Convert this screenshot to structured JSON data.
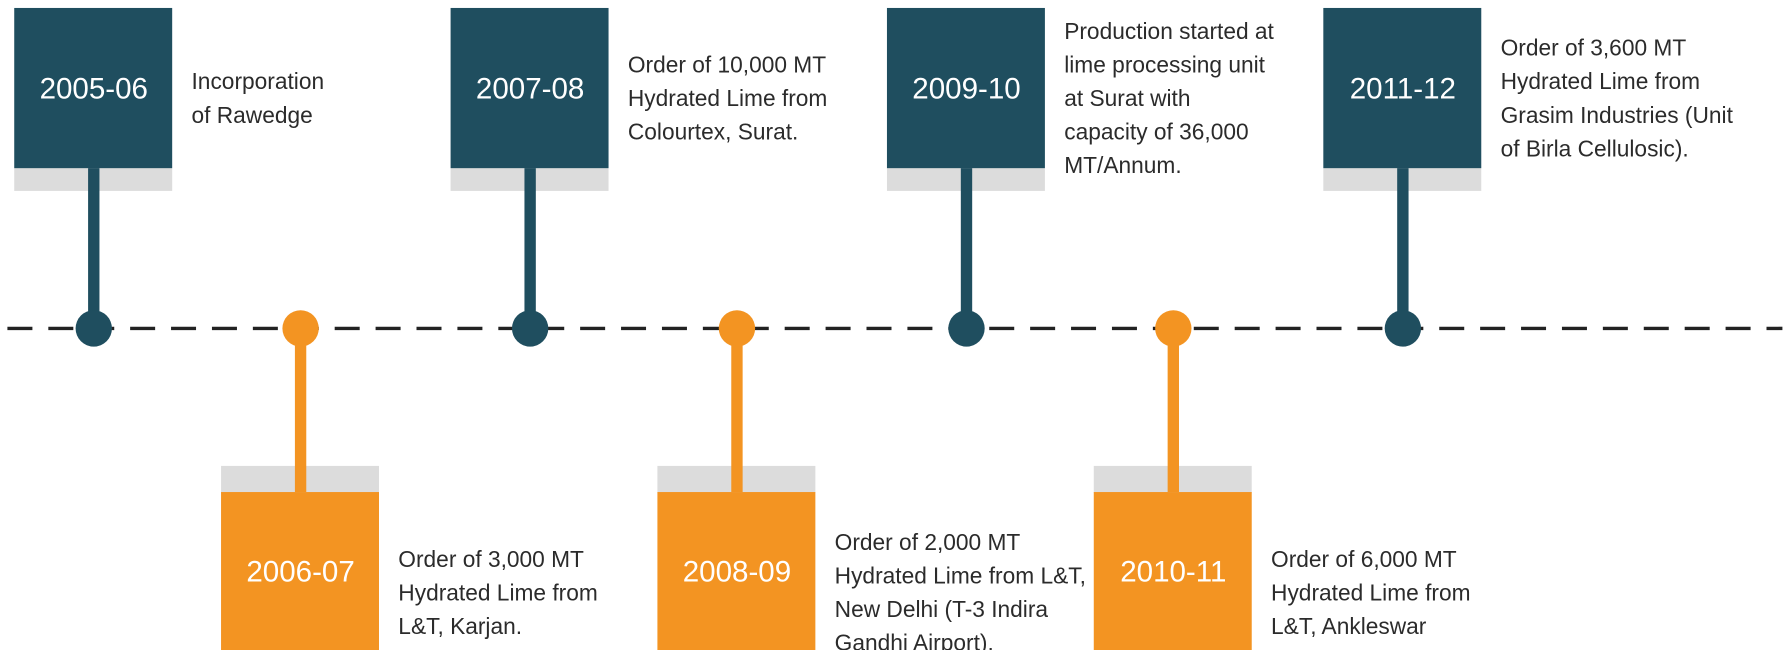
{
  "events": [
    {
      "year": "2005-06",
      "text": [
        "Incorporation",
        "of Rawedge"
      ]
    },
    {
      "year": "2006-07",
      "text": [
        "Order of 3,000 MT",
        "Hydrated Lime from",
        "L&T, Karjan."
      ]
    },
    {
      "year": "2007-08",
      "text": [
        "Order of 10,000 MT",
        "Hydrated Lime from",
        "Colourtex, Surat."
      ]
    },
    {
      "year": "2008-09",
      "text": [
        "Order of 2,000 MT",
        "Hydrated Lime from L&T,",
        "New Delhi (T-3 Indira",
        "Gandhi Airport)."
      ]
    },
    {
      "year": "2009-10",
      "text": [
        "Production started at",
        "lime processing unit",
        "at Surat with",
        "capacity of 36,000",
        "MT/Annum."
      ]
    },
    {
      "year": "2010-11",
      "text": [
        "Order of 6,000 MT",
        "Hydrated Lime from",
        "L&T, Ankleswar"
      ]
    },
    {
      "year": "2011-12",
      "text": [
        "Order of 3,600 MT",
        "Hydrated Lime from",
        "Grasim Industries (Unit",
        "of Birla Cellulosic)."
      ]
    }
  ]
}
